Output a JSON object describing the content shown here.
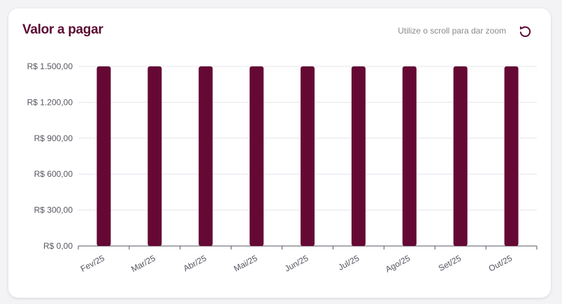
{
  "header": {
    "title": "Valor a pagar",
    "hint": "Utilize o scroll para dar zoom",
    "reset_icon": "rotate-ccw-icon"
  },
  "colors": {
    "bar": "#650934",
    "title": "#5c0a33",
    "grid": "#e4e4ee",
    "axis": "#555560"
  },
  "chart_data": {
    "type": "bar",
    "title": "Valor a pagar",
    "categories": [
      "Fev/25",
      "Mar/25",
      "Abr/25",
      "Mai/25",
      "Jun/25",
      "Jul/25",
      "Ago/25",
      "Set/25",
      "Out/25"
    ],
    "series": [
      {
        "values": [
          1500,
          1500,
          1500,
          1500,
          1500,
          1500,
          1500,
          1500,
          1500
        ]
      }
    ],
    "ylim": [
      0,
      1500
    ],
    "yticks": [
      0,
      300,
      600,
      900,
      1200,
      1500
    ],
    "ytick_labels": [
      "R$ 0,00",
      "R$ 300,00",
      "R$ 600,00",
      "R$ 900,00",
      "R$ 1.200,00",
      "R$ 1.500,00"
    ],
    "grid": true,
    "legend": "none"
  }
}
